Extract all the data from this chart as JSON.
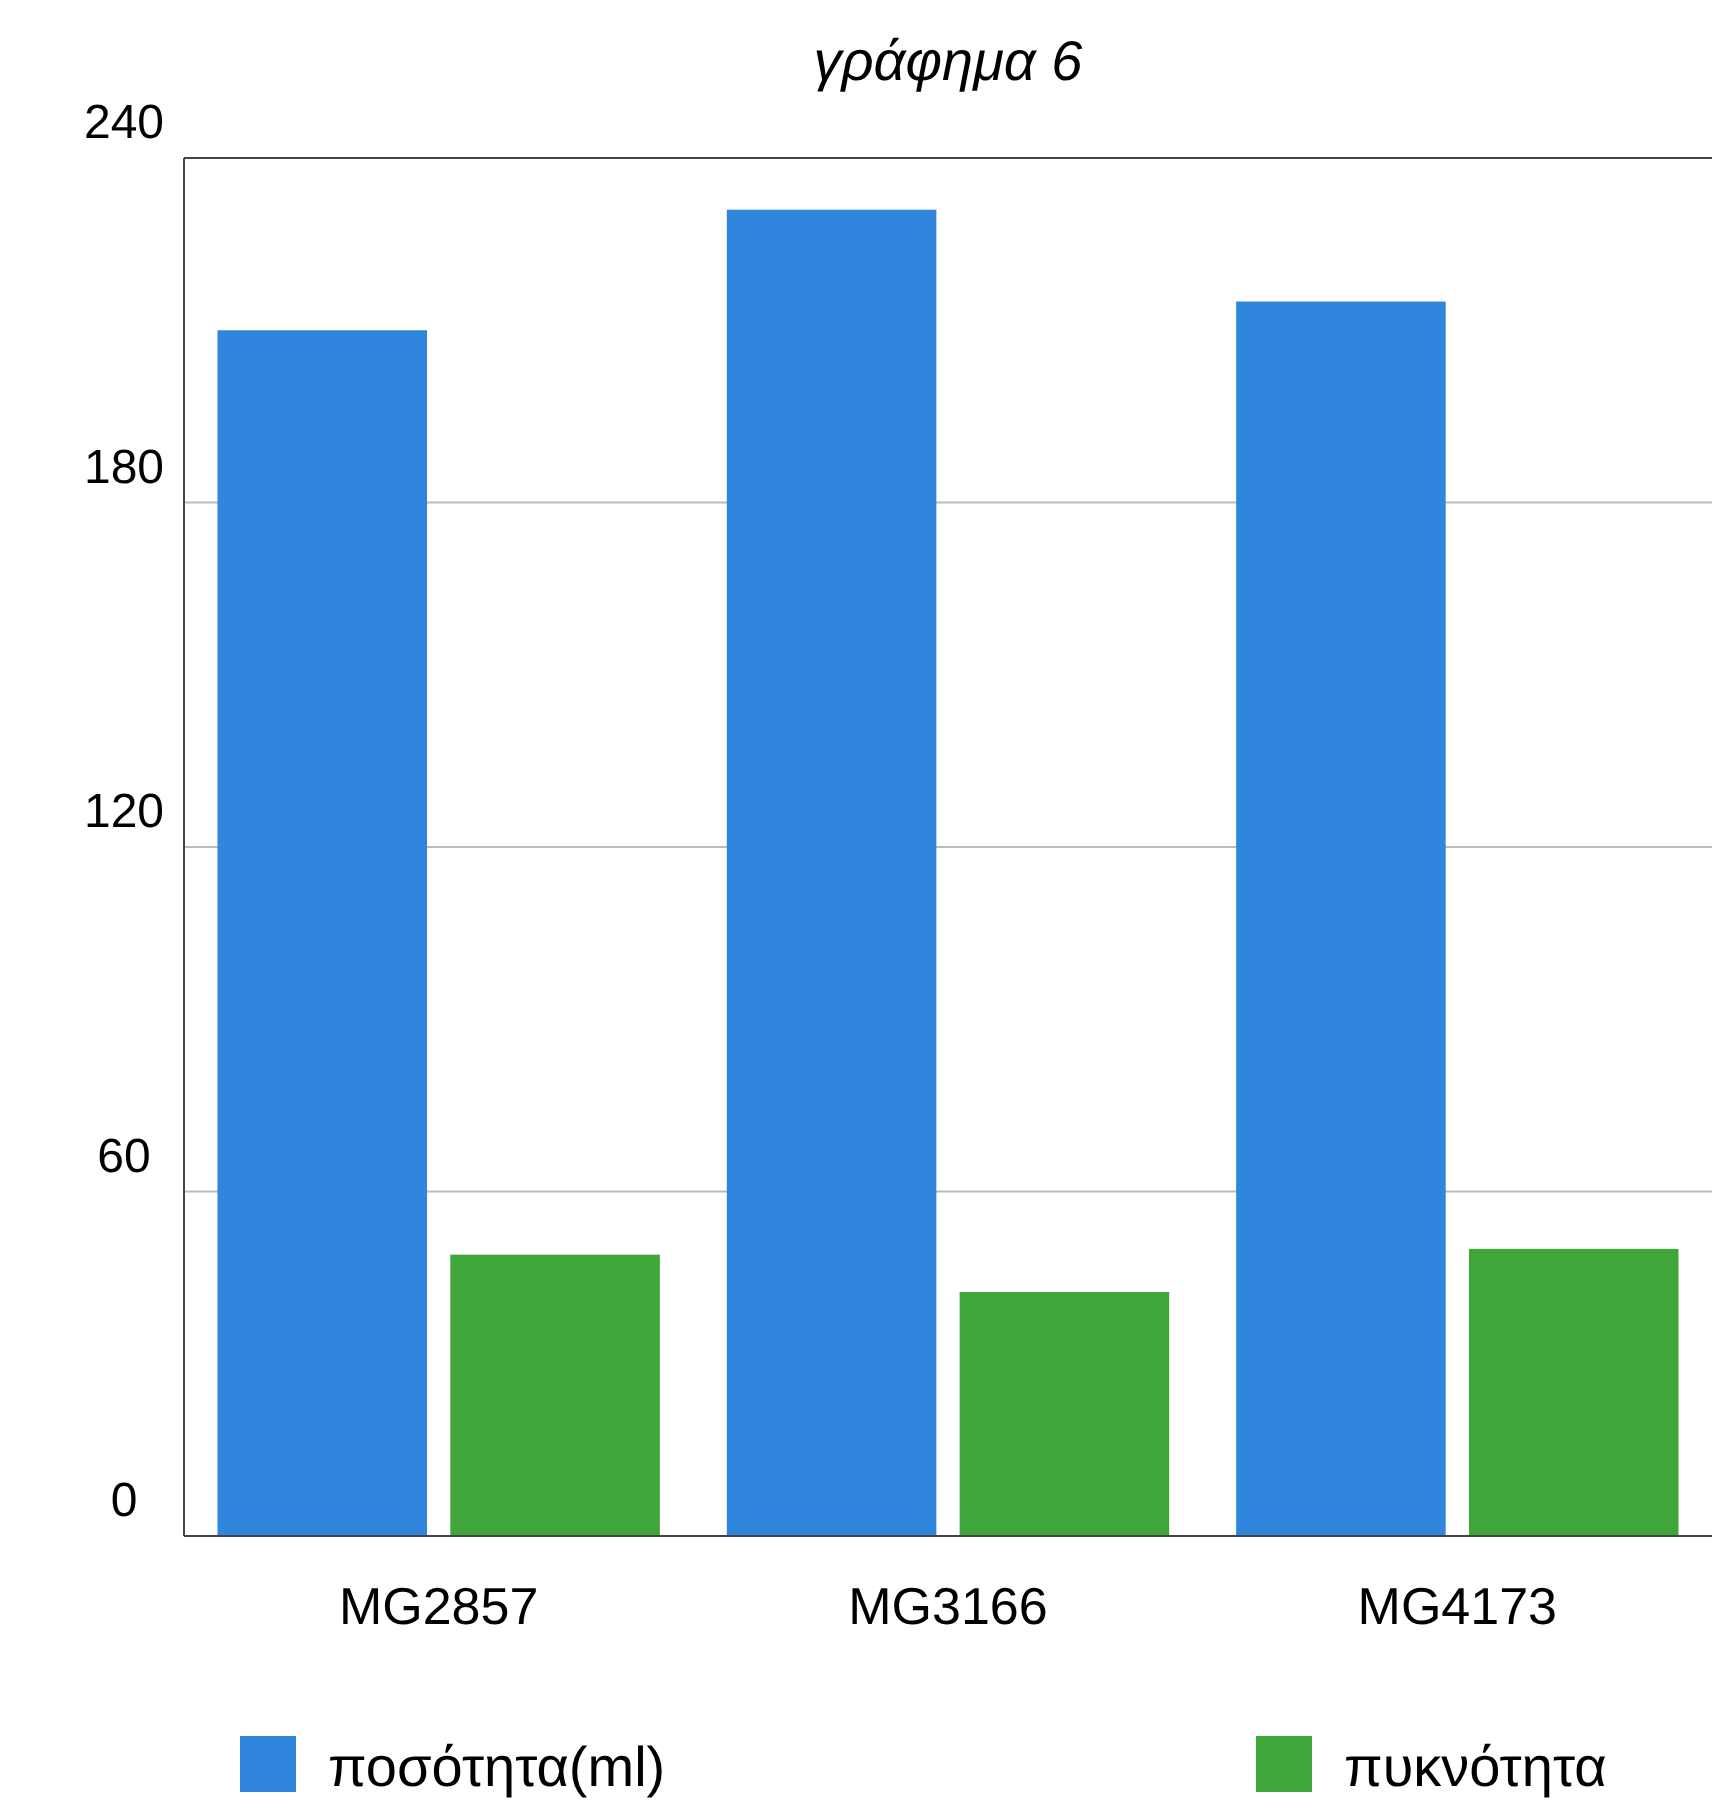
{
  "chart_data": {
    "type": "bar",
    "title": "γράφημα 6",
    "categories": [
      "MG2857",
      "MG3166",
      "MG4173"
    ],
    "series": [
      {
        "name": "ποσότητα(ml)",
        "color": "#2f86dc",
        "values": [
          210,
          231,
          215
        ]
      },
      {
        "name": "πυκνότητα",
        "color": "#3fa63a",
        "values": [
          49,
          42.5,
          50
        ]
      }
    ],
    "ylim": [
      0,
      240
    ],
    "yticks": [
      0,
      60,
      120,
      180,
      240
    ],
    "grid": "y",
    "legend": "bottom"
  }
}
